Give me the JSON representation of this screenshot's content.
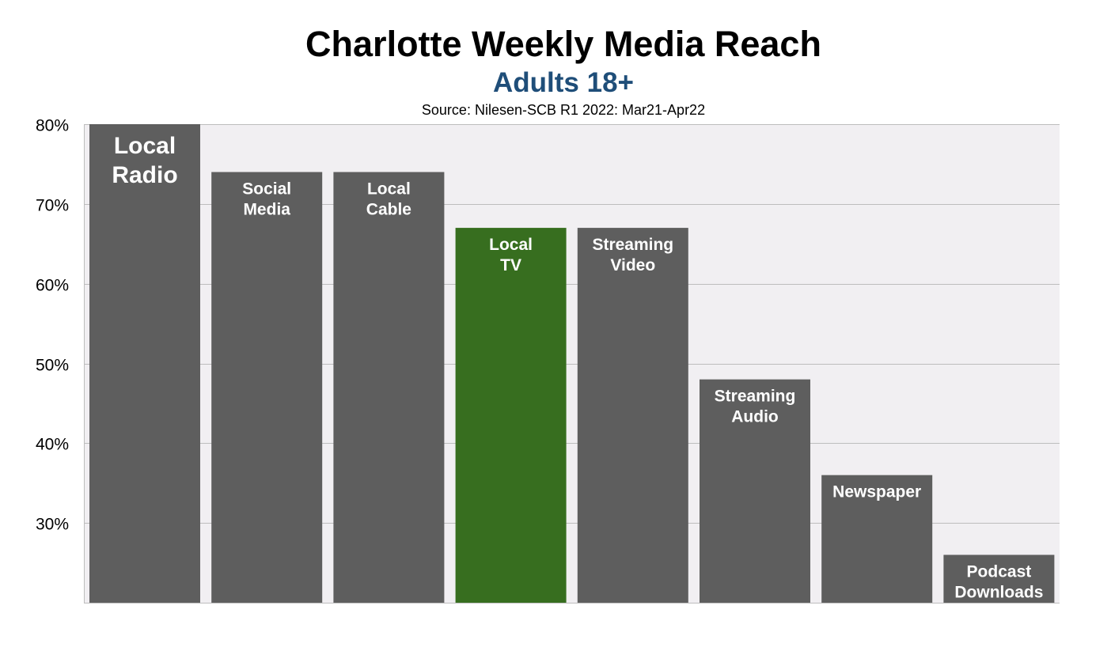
{
  "chart_data": {
    "type": "bar",
    "title": "Charlotte Weekly Media Reach",
    "subtitle": "Adults 18+",
    "source": "Source: Nilesen-SCB R1 2022: Mar21-Apr22",
    "categories": [
      [
        "Local",
        "Radio"
      ],
      [
        "Social",
        "Media"
      ],
      [
        "Local",
        "Cable"
      ],
      [
        "Local",
        "TV"
      ],
      [
        "Streaming",
        "Video"
      ],
      [
        "Streaming",
        "Audio"
      ],
      [
        "Newspaper"
      ],
      [
        "Podcast",
        "Downloads"
      ]
    ],
    "values": [
      80,
      74,
      74,
      67,
      67,
      48,
      36,
      26
    ],
    "highlight_index": 3,
    "ylim": [
      20,
      80
    ],
    "yticks": [
      30,
      40,
      50,
      60,
      70,
      80
    ],
    "ytick_labels": [
      "30%",
      "40%",
      "50%",
      "60%",
      "70%",
      "80%"
    ],
    "xlabel": "",
    "ylabel": "",
    "grid": true,
    "legend": "none",
    "colors": {
      "bar": "#5e5e5e",
      "highlight": "#376e1f",
      "plot_bg": "#f1eff2",
      "grid": "#bdbdbd",
      "subtitle": "#1f4e79"
    }
  }
}
